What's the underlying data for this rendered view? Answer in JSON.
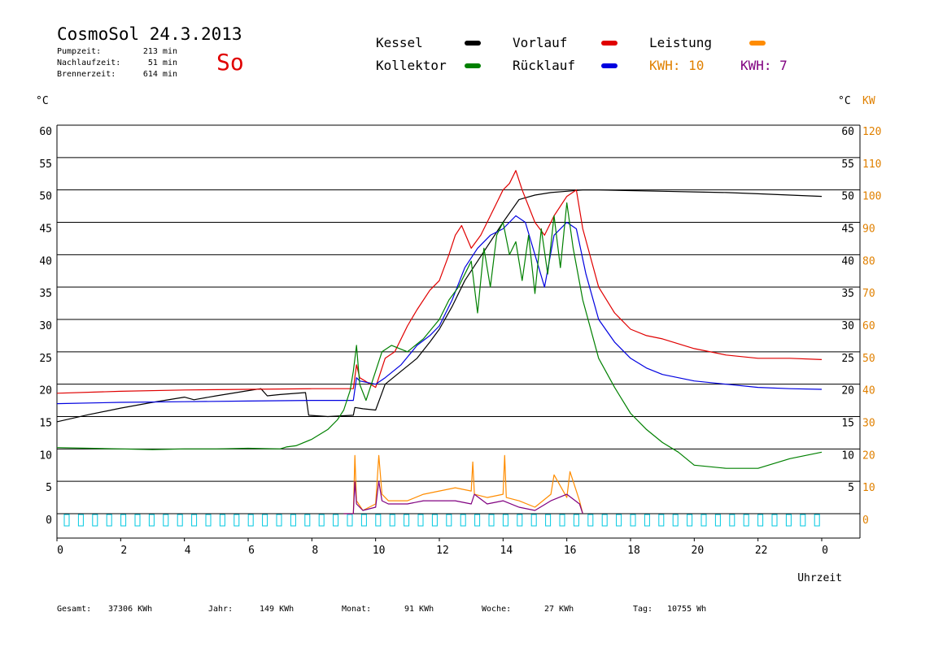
{
  "header": {
    "title": "CosmoSol 24.3.2013",
    "weekday": "So",
    "stats": [
      {
        "label": "Pumpzeit:",
        "value": "213 min"
      },
      {
        "label": "Nachlaufzeit:",
        "value": "51 min"
      },
      {
        "label": "Brennerzeit:",
        "value": "614 min"
      }
    ]
  },
  "legend": {
    "items": [
      {
        "label": "Kessel",
        "color": "#000000"
      },
      {
        "label": "Vorlauf",
        "color": "#e00000"
      },
      {
        "label": "Leistung",
        "color": "#ff8c00"
      },
      {
        "label": "Kollektor",
        "color": "#008000"
      },
      {
        "label": "Rücklauf",
        "color": "#0000e0"
      }
    ],
    "kwh_orange": "KWH: 10",
    "kwh_purple": "KWH: 7",
    "kwh_orange_color": "#e08000",
    "kwh_purple_color": "#800080"
  },
  "footer": {
    "items": [
      {
        "label": "Gesamt:",
        "value": "37306 KWh"
      },
      {
        "label": "Jahr:",
        "value": "149 KWh"
      },
      {
        "label": "Monat:",
        "value": "91 KWh"
      },
      {
        "label": "Woche:",
        "value": "27 KWh"
      },
      {
        "label": "Tag:",
        "value": "10755 Wh"
      }
    ]
  },
  "chart_data": {
    "type": "line",
    "xlabel": "Uhrzeit",
    "ylabel_left": "°C",
    "ylabel_right": "°C",
    "ylabel_right2": "KW",
    "xlim": [
      0,
      24
    ],
    "ylim": [
      0,
      60
    ],
    "ylim_kw": [
      0,
      120
    ],
    "x_ticks": [
      "0",
      "2",
      "4",
      "6",
      "8",
      "10",
      "12",
      "14",
      "16",
      "18",
      "20",
      "22",
      "0"
    ],
    "y_ticks": [
      "0",
      "5",
      "10",
      "15",
      "20",
      "25",
      "30",
      "35",
      "40",
      "45",
      "50",
      "55",
      "60"
    ],
    "y_ticks_right": [
      "5",
      "10",
      "15",
      "20",
      "25",
      "30",
      "35",
      "40",
      "45",
      "50",
      "55",
      "60"
    ],
    "kw_ticks": [
      "0",
      "10",
      "20",
      "30",
      "40",
      "50",
      "60",
      "70",
      "80",
      "90",
      "100",
      "110",
      "120"
    ],
    "grid": true,
    "series": [
      {
        "name": "Kessel",
        "color": "#000000",
        "x": [
          0,
          1,
          2,
          3,
          4,
          4.3,
          5,
          6,
          6.4,
          6.6,
          7,
          7.8,
          7.9,
          8.5,
          9.3,
          9.35,
          9.6,
          10.0,
          10.3,
          10.8,
          11.3,
          11.7,
          12.0,
          12.4,
          12.8,
          13.2,
          13.6,
          14.0,
          14.5,
          15.0,
          15.5,
          16.0,
          16.5,
          17,
          18,
          19,
          20,
          21,
          22,
          23,
          24
        ],
        "y": [
          14.2,
          15.3,
          16.3,
          17.2,
          18.0,
          17.6,
          18.2,
          19.0,
          19.3,
          18.2,
          18.4,
          18.7,
          15.2,
          15.0,
          15.2,
          16.4,
          16.2,
          16.0,
          20.0,
          22.0,
          24.0,
          26.5,
          28.5,
          32,
          36,
          39,
          42,
          45,
          48.5,
          49.2,
          49.6,
          49.8,
          50,
          50,
          49.9,
          49.8,
          49.7,
          49.6,
          49.4,
          49.2,
          49.0
        ]
      },
      {
        "name": "Vorlauf",
        "color": "#e00000",
        "x": [
          0,
          2,
          4,
          6,
          8,
          9.0,
          9.3,
          9.4,
          9.5,
          10.0,
          10.3,
          10.6,
          11.0,
          11.3,
          11.7,
          12.0,
          12.3,
          12.5,
          12.7,
          13.0,
          13.3,
          13.6,
          13.8,
          14.0,
          14.2,
          14.4,
          14.6,
          15.0,
          15.3,
          15.6,
          16.0,
          16.3,
          16.5,
          17,
          17.5,
          18,
          18.5,
          19,
          20,
          21,
          22,
          23,
          24
        ],
        "y": [
          18.6,
          18.9,
          19.1,
          19.2,
          19.3,
          19.3,
          19.3,
          23,
          21,
          19.5,
          24,
          25,
          29,
          31.5,
          34.5,
          36,
          40,
          43,
          44.5,
          41,
          43,
          46,
          48,
          50,
          51,
          53,
          50,
          45,
          43,
          46,
          49,
          50,
          44,
          35,
          31,
          28.5,
          27.5,
          27,
          25.5,
          24.5,
          24,
          24,
          23.8
        ]
      },
      {
        "name": "Rücklauf",
        "color": "#0000e0",
        "x": [
          0,
          2,
          4,
          6,
          8,
          9.3,
          9.4,
          9.5,
          10.0,
          10.3,
          10.8,
          11.3,
          11.7,
          12.0,
          12.4,
          12.8,
          13.2,
          13.6,
          14.0,
          14.4,
          14.7,
          15.0,
          15.3,
          15.6,
          16.0,
          16.3,
          16.6,
          17,
          17.5,
          18,
          18.5,
          19,
          20,
          21,
          22,
          23,
          24
        ],
        "y": [
          17.0,
          17.2,
          17.3,
          17.4,
          17.5,
          17.5,
          21,
          20.5,
          20,
          21,
          23,
          26,
          27.5,
          29,
          33,
          38,
          41,
          43,
          44,
          46,
          45,
          40,
          35,
          43,
          45,
          44,
          37,
          30,
          26.5,
          24,
          22.5,
          21.5,
          20.5,
          20,
          19.5,
          19.3,
          19.2
        ]
      },
      {
        "name": "Kollektor",
        "color": "#008000",
        "x": [
          0,
          1,
          2,
          3,
          4,
          5,
          6,
          7,
          7.2,
          7.5,
          8.0,
          8.5,
          8.8,
          9.0,
          9.2,
          9.3,
          9.4,
          9.5,
          9.7,
          10.0,
          10.2,
          10.5,
          11.0,
          11.5,
          12.0,
          12.3,
          12.6,
          13.0,
          13.2,
          13.4,
          13.6,
          13.8,
          14.0,
          14.2,
          14.4,
          14.6,
          14.8,
          15.0,
          15.2,
          15.4,
          15.6,
          15.8,
          16.0,
          16.2,
          16.5,
          17,
          17.5,
          18,
          18.5,
          19,
          19.5,
          20,
          21,
          22,
          23,
          24
        ],
        "y": [
          10.2,
          10.1,
          10.0,
          9.9,
          10.0,
          10.0,
          10.1,
          10.0,
          10.3,
          10.5,
          11.5,
          13,
          14.5,
          16,
          19,
          22,
          26,
          20,
          17.5,
          22,
          25,
          26,
          25,
          27,
          30,
          33,
          35,
          39,
          31,
          41,
          35,
          43,
          45,
          40,
          42,
          36,
          43,
          34,
          44,
          37,
          46,
          38,
          48,
          41,
          33,
          24,
          19.5,
          15.5,
          13,
          11,
          9.5,
          7.5,
          7.0,
          7.0,
          8.5,
          9.5
        ]
      },
      {
        "name": "Leistung",
        "color": "#ff8c00",
        "x": [
          9.0,
          9.3,
          9.35,
          9.4,
          9.6,
          10.0,
          10.1,
          10.2,
          10.4,
          11.0,
          11.5,
          12.0,
          12.5,
          13.0,
          13.05,
          13.1,
          13.5,
          14.0,
          14.05,
          14.1,
          14.5,
          15.0,
          15.5,
          15.6,
          16.0,
          16.1,
          16.4,
          16.5
        ],
        "y": [
          0,
          0,
          18,
          4,
          1,
          3,
          18,
          6,
          4,
          4,
          6,
          7,
          8,
          7,
          16,
          6,
          5,
          6,
          18,
          5,
          4,
          2,
          6,
          12,
          5,
          13,
          4,
          0
        ]
      },
      {
        "name": "KWH 7",
        "color": "#800080",
        "x": [
          9.0,
          9.3,
          9.35,
          9.4,
          9.6,
          10.0,
          10.1,
          10.2,
          10.4,
          11.0,
          11.5,
          12.0,
          12.5,
          13.0,
          13.1,
          13.5,
          14.0,
          14.5,
          15.0,
          15.5,
          16.0,
          16.4,
          16.5
        ],
        "y": [
          0,
          0,
          10,
          3,
          1,
          2,
          10,
          4,
          3,
          3,
          4,
          4,
          4,
          3,
          6,
          3,
          4,
          2,
          1,
          4,
          6,
          3,
          0
        ]
      }
    ]
  }
}
